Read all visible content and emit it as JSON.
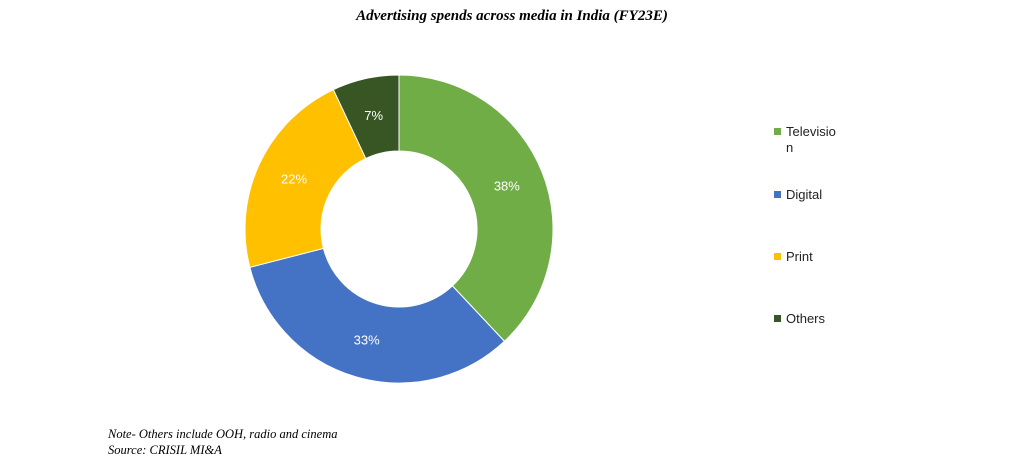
{
  "chart_data": {
    "type": "pie",
    "title": "Advertising spends across media in India (FY23E)",
    "categories": [
      "Television",
      "Digital",
      "Print",
      "Others"
    ],
    "values": [
      38,
      33,
      22,
      7
    ],
    "labels": [
      "38%",
      "33%",
      "22%",
      "7%"
    ],
    "colors": [
      "#70ad47",
      "#4472c4",
      "#ffc000",
      "#375623"
    ],
    "legend_labels": [
      "Televisio\nn",
      "Digital",
      "Print",
      "Others"
    ],
    "legend_position": "right"
  },
  "notes": {
    "note": "Note- Others include OOH, radio and cinema",
    "source": "Source: CRISIL MI&A"
  }
}
